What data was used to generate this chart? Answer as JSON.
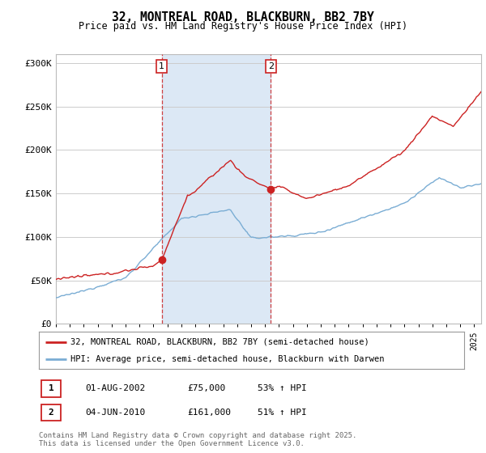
{
  "title": "32, MONTREAL ROAD, BLACKBURN, BB2 7BY",
  "subtitle": "Price paid vs. HM Land Registry's House Price Index (HPI)",
  "background_color": "#ffffff",
  "plot_bg_color": "#ffffff",
  "grid_color": "#cccccc",
  "ylim": [
    0,
    310000
  ],
  "yticks": [
    0,
    50000,
    100000,
    150000,
    200000,
    250000,
    300000
  ],
  "ytick_labels": [
    "£0",
    "£50K",
    "£100K",
    "£150K",
    "£200K",
    "£250K",
    "£300K"
  ],
  "sale1_x": 2002.583,
  "sale1_price": 75000,
  "sale2_x": 2010.417,
  "sale2_price": 161000,
  "hpi_color": "#7aadd4",
  "price_color": "#cc2222",
  "shade_color": "#dce8f5",
  "legend_label_price": "32, MONTREAL ROAD, BLACKBURN, BB2 7BY (semi-detached house)",
  "legend_label_hpi": "HPI: Average price, semi-detached house, Blackburn with Darwen",
  "footnote": "Contains HM Land Registry data © Crown copyright and database right 2025.\nThis data is licensed under the Open Government Licence v3.0.",
  "xstart": 1995.0,
  "xend": 2025.5
}
